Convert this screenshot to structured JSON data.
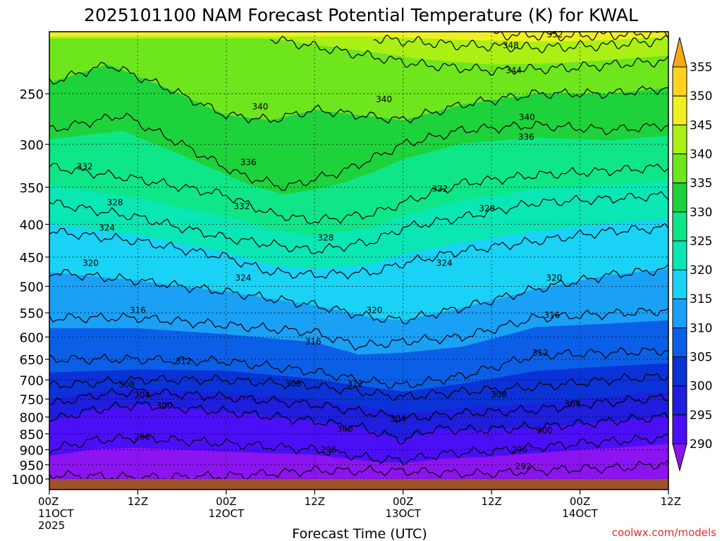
{
  "chart_data": {
    "type": "heatmap",
    "title": "2025101100 NAM Forecast Potential Temperature (K) for KWAL",
    "xlabel": "Forecast Time (UTC)",
    "ylabel": "",
    "y_scale": "log",
    "y_inverted": true,
    "ylim": [
      1000,
      200
    ],
    "y_ticks": [
      "250",
      "300",
      "350",
      "400",
      "450",
      "500",
      "550",
      "600",
      "650",
      "700",
      "750",
      "800",
      "850",
      "900",
      "950",
      "1000"
    ],
    "x_ticks": [
      {
        "hours": 0,
        "line1": "00Z",
        "line2": "11OCT",
        "line3": "2025"
      },
      {
        "hours": 12,
        "line1": "12Z",
        "line2": "",
        "line3": ""
      },
      {
        "hours": 24,
        "line1": "00Z",
        "line2": "12OCT",
        "line3": ""
      },
      {
        "hours": 36,
        "line1": "12Z",
        "line2": "",
        "line3": ""
      },
      {
        "hours": 48,
        "line1": "00Z",
        "line2": "13OCT",
        "line3": ""
      },
      {
        "hours": 60,
        "line1": "12Z",
        "line2": "",
        "line3": ""
      },
      {
        "hours": 72,
        "line1": "00Z",
        "line2": "14OCT",
        "line3": ""
      },
      {
        "hours": 84,
        "line1": "12Z",
        "line2": "",
        "line3": ""
      }
    ],
    "xlim": [
      0,
      84
    ],
    "colorbar": {
      "levels": [
        290,
        295,
        300,
        305,
        310,
        315,
        320,
        325,
        330,
        335,
        340,
        345,
        350,
        355
      ],
      "labels": [
        "290",
        "295",
        "300",
        "305",
        "310",
        "315",
        "320",
        "325",
        "330",
        "335",
        "340",
        "345",
        "350",
        "355"
      ],
      "colors": [
        "#8c14f0",
        "#4b0ff5",
        "#1e1edc",
        "#0a32d7",
        "#0a5fe6",
        "#1aa0f5",
        "#19d2f5",
        "#0ae6b4",
        "#0fe687",
        "#1ed23c",
        "#6ee61e",
        "#aaf014",
        "#f0f01e",
        "#ffd21e",
        "#f5aa14"
      ]
    },
    "contours": [
      {
        "value": 292,
        "label": "292",
        "pts": [
          [
            0,
            985
          ],
          [
            12,
            995
          ],
          [
            24,
            990
          ],
          [
            36,
            970
          ],
          [
            48,
            972
          ],
          [
            58,
            982
          ],
          [
            70,
            966
          ],
          [
            78,
            960
          ],
          [
            84,
            945
          ]
        ]
      },
      {
        "value": 296,
        "label": "296",
        "pts": [
          [
            0,
            900
          ],
          [
            6,
            870
          ],
          [
            12,
            862
          ],
          [
            24,
            880
          ],
          [
            36,
            900
          ],
          [
            44,
            930
          ],
          [
            48,
            935
          ],
          [
            54,
            912
          ],
          [
            60,
            905
          ],
          [
            72,
            880
          ],
          [
            84,
            862
          ]
        ]
      },
      {
        "value": 300,
        "label": "300",
        "pts": [
          [
            0,
            810
          ],
          [
            6,
            780
          ],
          [
            12,
            765
          ],
          [
            24,
            785
          ],
          [
            36,
            812
          ],
          [
            42,
            830
          ],
          [
            48,
            870
          ],
          [
            52,
            835
          ],
          [
            58,
            838
          ],
          [
            66,
            830
          ],
          [
            72,
            820
          ],
          [
            84,
            798
          ]
        ]
      },
      {
        "value": 304,
        "label": "304",
        "pts": [
          [
            0,
            765
          ],
          [
            6,
            740
          ],
          [
            12,
            730
          ],
          [
            24,
            745
          ],
          [
            36,
            765
          ],
          [
            44,
            790
          ],
          [
            48,
            805
          ],
          [
            56,
            790
          ],
          [
            66,
            780
          ],
          [
            72,
            765
          ],
          [
            84,
            745
          ]
        ]
      },
      {
        "value": 308,
        "label": "308",
        "pts": [
          [
            0,
            715
          ],
          [
            12,
            700
          ],
          [
            24,
            700
          ],
          [
            36,
            715
          ],
          [
            44,
            735
          ],
          [
            48,
            745
          ],
          [
            56,
            730
          ],
          [
            66,
            718
          ],
          [
            76,
            700
          ],
          [
            84,
            690
          ]
        ]
      },
      {
        "value": 312,
        "label": "312",
        "pts": [
          [
            0,
            650
          ],
          [
            12,
            650
          ],
          [
            24,
            655
          ],
          [
            36,
            680
          ],
          [
            42,
            700
          ],
          [
            48,
            715
          ],
          [
            56,
            690
          ],
          [
            66,
            640
          ],
          [
            76,
            635
          ],
          [
            84,
            630
          ]
        ]
      },
      {
        "value": 316,
        "label": "316",
        "pts": [
          [
            0,
            560
          ],
          [
            12,
            560
          ],
          [
            24,
            575
          ],
          [
            36,
            590
          ],
          [
            42,
            620
          ],
          [
            48,
            610
          ],
          [
            56,
            600
          ],
          [
            66,
            560
          ],
          [
            76,
            552
          ],
          [
            84,
            545
          ]
        ]
      },
      {
        "value": 320,
        "label": "320",
        "pts": [
          [
            0,
            475
          ],
          [
            12,
            490
          ],
          [
            24,
            510
          ],
          [
            36,
            535
          ],
          [
            44,
            560
          ],
          [
            48,
            565
          ],
          [
            56,
            540
          ],
          [
            66,
            505
          ],
          [
            76,
            480
          ],
          [
            84,
            470
          ]
        ]
      },
      {
        "value": 324,
        "label": "324",
        "pts": [
          [
            0,
            410
          ],
          [
            12,
            425
          ],
          [
            24,
            450
          ],
          [
            30,
            475
          ],
          [
            36,
            480
          ],
          [
            44,
            475
          ],
          [
            48,
            460
          ],
          [
            56,
            440
          ],
          [
            66,
            425
          ],
          [
            76,
            410
          ],
          [
            84,
            405
          ]
        ]
      },
      {
        "value": 328,
        "label": "328",
        "pts": [
          [
            0,
            370
          ],
          [
            12,
            390
          ],
          [
            24,
            420
          ],
          [
            36,
            440
          ],
          [
            44,
            425
          ],
          [
            48,
            405
          ],
          [
            56,
            390
          ],
          [
            66,
            370
          ],
          [
            76,
            365
          ],
          [
            84,
            360
          ]
        ]
      },
      {
        "value": 332,
        "label": "332",
        "pts": [
          [
            0,
            325
          ],
          [
            12,
            340
          ],
          [
            24,
            360
          ],
          [
            30,
            385
          ],
          [
            36,
            395
          ],
          [
            44,
            385
          ],
          [
            48,
            370
          ],
          [
            56,
            345
          ],
          [
            66,
            335
          ],
          [
            76,
            330
          ],
          [
            84,
            325
          ]
        ]
      },
      {
        "value": 336,
        "label": "336",
        "pts": [
          [
            0,
            285
          ],
          [
            10,
            270
          ],
          [
            18,
            300
          ],
          [
            26,
            335
          ],
          [
            32,
            350
          ],
          [
            40,
            330
          ],
          [
            48,
            300
          ],
          [
            56,
            285
          ],
          [
            66,
            280
          ],
          [
            76,
            285
          ],
          [
            84,
            280
          ]
        ]
      },
      {
        "value": 340,
        "label": "340",
        "pts": [
          [
            0,
            240
          ],
          [
            8,
            225
          ],
          [
            16,
            245
          ],
          [
            24,
            270
          ],
          [
            30,
            275
          ],
          [
            36,
            265
          ],
          [
            48,
            275
          ],
          [
            56,
            260
          ],
          [
            66,
            250
          ],
          [
            76,
            250
          ],
          [
            84,
            245
          ]
        ]
      },
      {
        "value": 344,
        "label": "344",
        "pts": [
          [
            30,
            205
          ],
          [
            40,
            215
          ],
          [
            50,
            225
          ],
          [
            60,
            230
          ],
          [
            70,
            228
          ],
          [
            84,
            222
          ]
        ]
      },
      {
        "value": 348,
        "label": "348",
        "pts": [
          [
            44,
            205
          ],
          [
            56,
            210
          ],
          [
            66,
            212
          ],
          [
            76,
            210
          ],
          [
            84,
            206
          ]
        ]
      },
      {
        "value": 352,
        "label": "352",
        "pts": [
          [
            60,
            202
          ],
          [
            70,
            203
          ],
          [
            78,
            202
          ],
          [
            84,
            201
          ]
        ]
      }
    ],
    "contour_labels": [
      {
        "text": "352",
        "x": 68.6,
        "p": 202
      },
      {
        "text": "348",
        "x": 62.6,
        "p": 210
      },
      {
        "text": "344",
        "x": 63.0,
        "p": 230
      },
      {
        "text": "340",
        "x": 28.6,
        "p": 262
      },
      {
        "text": "340",
        "x": 45.4,
        "p": 255
      },
      {
        "text": "340",
        "x": 64.8,
        "p": 272
      },
      {
        "text": "336",
        "x": 27.0,
        "p": 320
      },
      {
        "text": "336",
        "x": 64.7,
        "p": 292
      },
      {
        "text": "332",
        "x": 4.8,
        "p": 325
      },
      {
        "text": "332",
        "x": 26.1,
        "p": 375
      },
      {
        "text": "332",
        "x": 53.0,
        "p": 352
      },
      {
        "text": "328",
        "x": 8.9,
        "p": 370
      },
      {
        "text": "328",
        "x": 59.4,
        "p": 378
      },
      {
        "text": "328",
        "x": 37.5,
        "p": 420
      },
      {
        "text": "324",
        "x": 7.8,
        "p": 405
      },
      {
        "text": "324",
        "x": 26.3,
        "p": 485
      },
      {
        "text": "324",
        "x": 53.6,
        "p": 460
      },
      {
        "text": "320",
        "x": 5.6,
        "p": 460
      },
      {
        "text": "320",
        "x": 44.1,
        "p": 545
      },
      {
        "text": "320",
        "x": 68.5,
        "p": 485
      },
      {
        "text": "316",
        "x": 12.0,
        "p": 545
      },
      {
        "text": "316",
        "x": 35.8,
        "p": 610
      },
      {
        "text": "316",
        "x": 68.2,
        "p": 555
      },
      {
        "text": "312",
        "x": 18.2,
        "p": 655
      },
      {
        "text": "312",
        "x": 41.5,
        "p": 710
      },
      {
        "text": "312",
        "x": 66.6,
        "p": 635
      },
      {
        "text": "308",
        "x": 10.5,
        "p": 712
      },
      {
        "text": "308",
        "x": 33.1,
        "p": 710
      },
      {
        "text": "308",
        "x": 61.0,
        "p": 738
      },
      {
        "text": "304",
        "x": 12.6,
        "p": 740
      },
      {
        "text": "304",
        "x": 47.3,
        "p": 805
      },
      {
        "text": "304",
        "x": 71.0,
        "p": 763
      },
      {
        "text": "300",
        "x": 15.6,
        "p": 768
      },
      {
        "text": "300",
        "x": 40.1,
        "p": 835
      },
      {
        "text": "300",
        "x": 67.2,
        "p": 840
      },
      {
        "text": "296",
        "x": 12.6,
        "p": 860
      },
      {
        "text": "296",
        "x": 37.9,
        "p": 900
      },
      {
        "text": "296",
        "x": 63.8,
        "p": 900
      },
      {
        "text": "292",
        "x": 64.3,
        "p": 955
      }
    ],
    "surface_color": "#a0522d",
    "credit": "coolwx.com/models"
  }
}
